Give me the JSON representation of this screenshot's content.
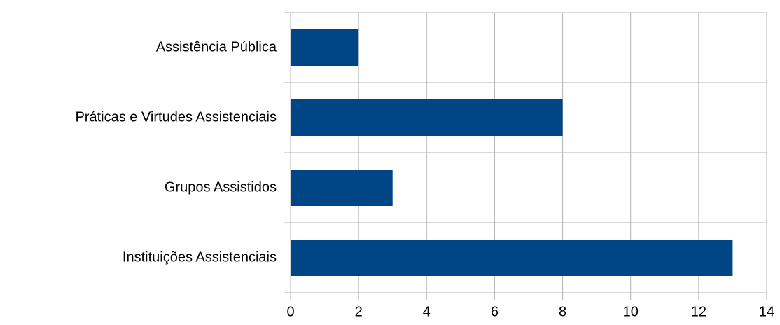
{
  "chart_data": {
    "type": "hbar",
    "categories": [
      "Assistência Pública",
      "Práticas e Virtudes Assistenciais",
      "Grupos Assistidos",
      "Instituições Assistenciais"
    ],
    "values": [
      2,
      8,
      3,
      13
    ],
    "color": "#004586",
    "xlim": [
      0,
      14
    ],
    "xticks": [
      0,
      2,
      4,
      6,
      8,
      10,
      12,
      14
    ],
    "grid": true
  }
}
